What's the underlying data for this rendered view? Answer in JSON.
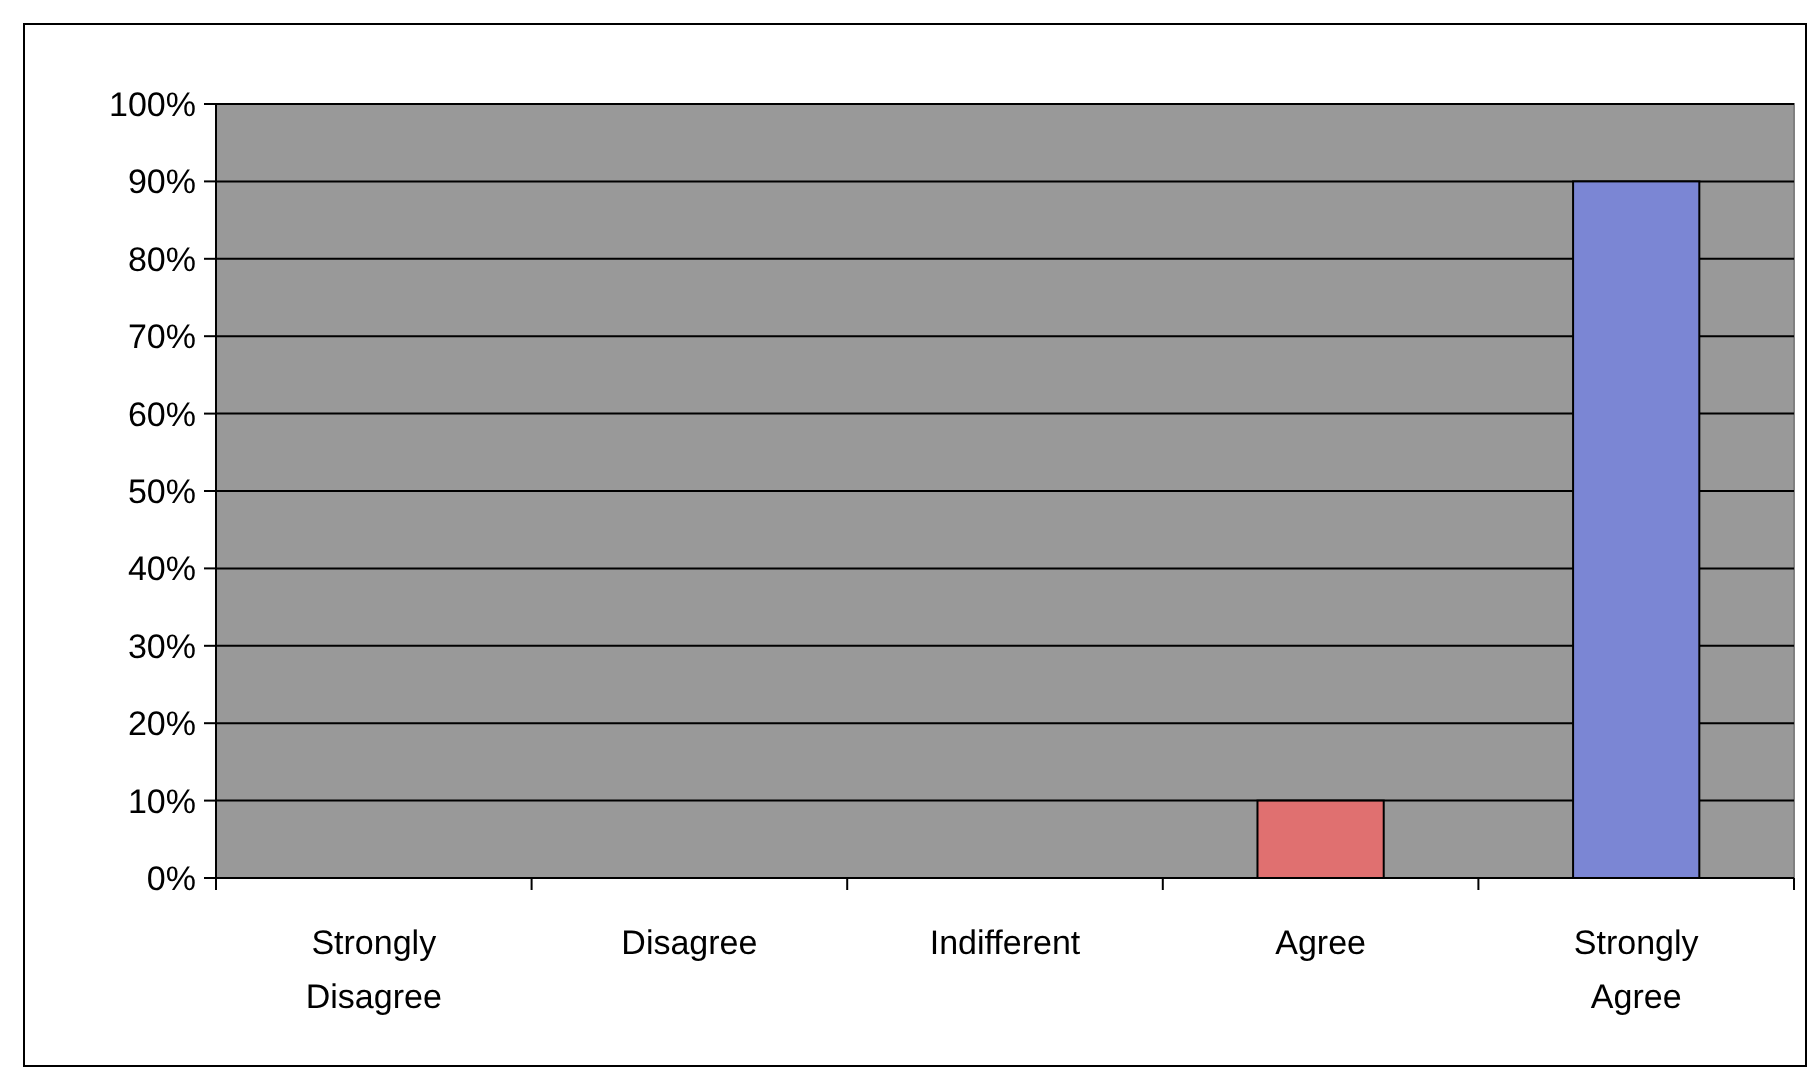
{
  "chart_data": {
    "type": "bar",
    "categories": [
      "Strongly Disagree",
      "Disagree",
      "Indifferent",
      "Agree",
      "Strongly Agree"
    ],
    "values": [
      0,
      0,
      0,
      10,
      90
    ],
    "colors": [
      "#e07070",
      "#e07070",
      "#e07070",
      "#e07070",
      "#7b86d4"
    ],
    "ylim": [
      0,
      100
    ],
    "yticks": [
      {
        "value": 0,
        "label": "0%"
      },
      {
        "value": 10,
        "label": "10%"
      },
      {
        "value": 20,
        "label": "20%"
      },
      {
        "value": 30,
        "label": "30%"
      },
      {
        "value": 40,
        "label": "40%"
      },
      {
        "value": 50,
        "label": "50%"
      },
      {
        "value": 60,
        "label": "60%"
      },
      {
        "value": 70,
        "label": "70%"
      },
      {
        "value": 80,
        "label": "80%"
      },
      {
        "value": 90,
        "label": "90%"
      },
      {
        "value": 100,
        "label": "100%"
      }
    ],
    "grid": "y"
  }
}
